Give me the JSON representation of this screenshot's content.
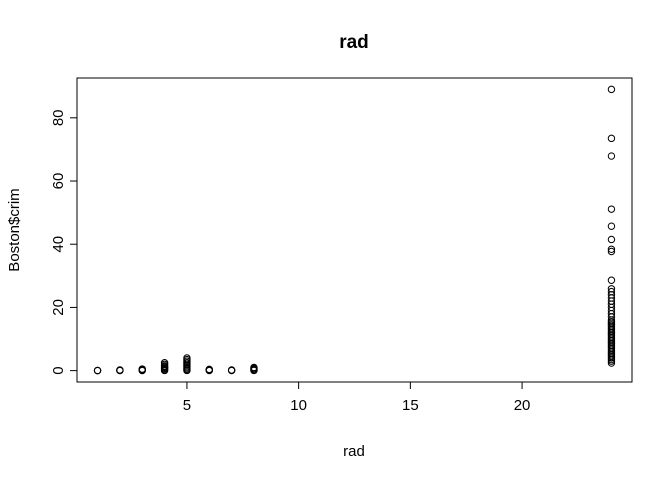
{
  "chart_data": {
    "type": "scatter",
    "title": "rad",
    "xlabel": "rad",
    "ylabel": "Boston$crim",
    "xlim": [
      0.08,
      24.92
    ],
    "ylim": [
      -3.6,
      92.6
    ],
    "xticks": [
      5,
      10,
      15,
      20
    ],
    "yticks": [
      0,
      20,
      40,
      60,
      80
    ],
    "grid": false,
    "legend": "none",
    "marker": "open-circle",
    "color": "#000000",
    "points": [
      [
        1,
        0.01
      ],
      [
        1,
        0.03
      ],
      [
        1,
        0.05
      ],
      [
        2,
        0.02
      ],
      [
        2,
        0.08
      ],
      [
        2,
        0.15
      ],
      [
        2,
        0.2
      ],
      [
        3,
        0.03
      ],
      [
        3,
        0.1
      ],
      [
        3,
        0.2
      ],
      [
        3,
        0.35
      ],
      [
        3,
        0.5
      ],
      [
        4,
        0.05
      ],
      [
        4,
        0.3
      ],
      [
        4,
        0.6
      ],
      [
        4,
        0.9
      ],
      [
        4,
        1.2
      ],
      [
        4,
        1.5
      ],
      [
        4,
        2.0
      ],
      [
        4,
        2.5
      ],
      [
        5,
        0.05
      ],
      [
        5,
        0.4
      ],
      [
        5,
        0.8
      ],
      [
        5,
        1.2
      ],
      [
        5,
        1.6
      ],
      [
        5,
        2.0
      ],
      [
        5,
        2.5
      ],
      [
        5,
        3.0
      ],
      [
        5,
        3.5
      ],
      [
        5,
        4.0
      ],
      [
        6,
        0.03
      ],
      [
        6,
        0.1
      ],
      [
        6,
        0.25
      ],
      [
        6,
        0.4
      ],
      [
        7,
        0.02
      ],
      [
        7,
        0.1
      ],
      [
        7,
        0.2
      ],
      [
        8,
        0.05
      ],
      [
        8,
        0.2
      ],
      [
        8,
        0.5
      ],
      [
        8,
        0.8
      ],
      [
        8,
        1.0
      ],
      [
        24,
        2.4
      ],
      [
        24,
        3.0
      ],
      [
        24,
        3.5
      ],
      [
        24,
        4.0
      ],
      [
        24,
        4.5
      ],
      [
        24,
        5.0
      ],
      [
        24,
        5.5
      ],
      [
        24,
        6.0
      ],
      [
        24,
        6.5
      ],
      [
        24,
        7.0
      ],
      [
        24,
        7.5
      ],
      [
        24,
        8.0
      ],
      [
        24,
        8.5
      ],
      [
        24,
        9.0
      ],
      [
        24,
        9.5
      ],
      [
        24,
        10.0
      ],
      [
        24,
        10.5
      ],
      [
        24,
        11.0
      ],
      [
        24,
        11.5
      ],
      [
        24,
        12.0
      ],
      [
        24,
        12.5
      ],
      [
        24,
        13.0
      ],
      [
        24,
        13.5
      ],
      [
        24,
        14.0
      ],
      [
        24,
        14.5
      ],
      [
        24,
        15.0
      ],
      [
        24,
        15.5
      ],
      [
        24,
        16.0
      ],
      [
        24,
        17.0
      ],
      [
        24,
        18.0
      ],
      [
        24,
        19.0
      ],
      [
        24,
        20.0
      ],
      [
        24,
        21.0
      ],
      [
        24,
        22.0
      ],
      [
        24,
        23.0
      ],
      [
        24,
        24.0
      ],
      [
        24,
        25.0
      ],
      [
        24,
        25.9
      ],
      [
        24,
        28.6
      ],
      [
        24,
        37.7
      ],
      [
        24,
        38.4
      ],
      [
        24,
        41.5
      ],
      [
        24,
        45.7
      ],
      [
        24,
        51.1
      ],
      [
        24,
        67.9
      ],
      [
        24,
        73.5
      ],
      [
        24,
        89.0
      ]
    ]
  }
}
